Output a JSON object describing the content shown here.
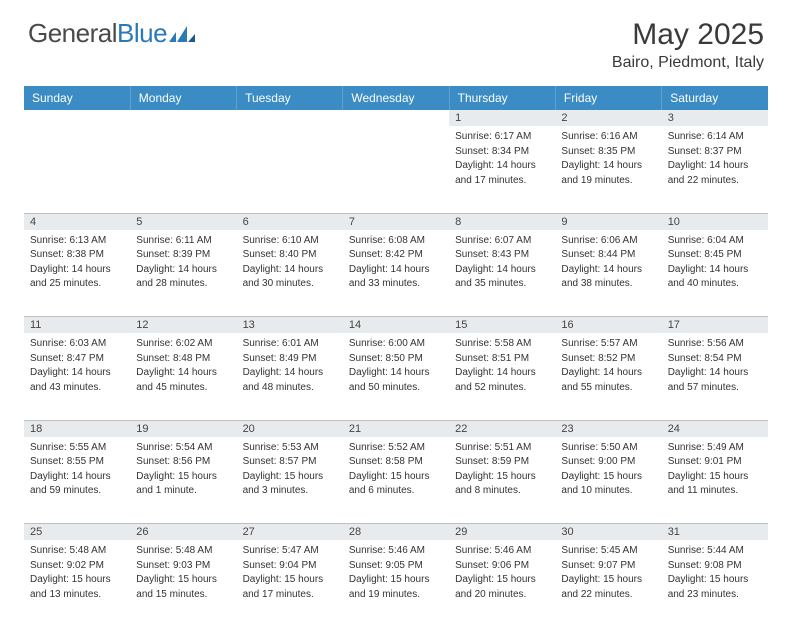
{
  "brand": {
    "name_part1": "General",
    "name_part2": "Blue"
  },
  "title": "May 2025",
  "location": "Bairo, Piedmont, Italy",
  "colors": {
    "header_bg": "#3b8bc4",
    "header_text": "#ffffff",
    "daynum_bg": "#e8ebee",
    "border": "#bfbfbf",
    "brand_blue": "#2a7ab8",
    "text": "#333333"
  },
  "weekdays": [
    "Sunday",
    "Monday",
    "Tuesday",
    "Wednesday",
    "Thursday",
    "Friday",
    "Saturday"
  ],
  "weeks": [
    [
      null,
      null,
      null,
      null,
      {
        "d": "1",
        "sr": "Sunrise: 6:17 AM",
        "ss": "Sunset: 8:34 PM",
        "dl1": "Daylight: 14 hours",
        "dl2": "and 17 minutes."
      },
      {
        "d": "2",
        "sr": "Sunrise: 6:16 AM",
        "ss": "Sunset: 8:35 PM",
        "dl1": "Daylight: 14 hours",
        "dl2": "and 19 minutes."
      },
      {
        "d": "3",
        "sr": "Sunrise: 6:14 AM",
        "ss": "Sunset: 8:37 PM",
        "dl1": "Daylight: 14 hours",
        "dl2": "and 22 minutes."
      }
    ],
    [
      {
        "d": "4",
        "sr": "Sunrise: 6:13 AM",
        "ss": "Sunset: 8:38 PM",
        "dl1": "Daylight: 14 hours",
        "dl2": "and 25 minutes."
      },
      {
        "d": "5",
        "sr": "Sunrise: 6:11 AM",
        "ss": "Sunset: 8:39 PM",
        "dl1": "Daylight: 14 hours",
        "dl2": "and 28 minutes."
      },
      {
        "d": "6",
        "sr": "Sunrise: 6:10 AM",
        "ss": "Sunset: 8:40 PM",
        "dl1": "Daylight: 14 hours",
        "dl2": "and 30 minutes."
      },
      {
        "d": "7",
        "sr": "Sunrise: 6:08 AM",
        "ss": "Sunset: 8:42 PM",
        "dl1": "Daylight: 14 hours",
        "dl2": "and 33 minutes."
      },
      {
        "d": "8",
        "sr": "Sunrise: 6:07 AM",
        "ss": "Sunset: 8:43 PM",
        "dl1": "Daylight: 14 hours",
        "dl2": "and 35 minutes."
      },
      {
        "d": "9",
        "sr": "Sunrise: 6:06 AM",
        "ss": "Sunset: 8:44 PM",
        "dl1": "Daylight: 14 hours",
        "dl2": "and 38 minutes."
      },
      {
        "d": "10",
        "sr": "Sunrise: 6:04 AM",
        "ss": "Sunset: 8:45 PM",
        "dl1": "Daylight: 14 hours",
        "dl2": "and 40 minutes."
      }
    ],
    [
      {
        "d": "11",
        "sr": "Sunrise: 6:03 AM",
        "ss": "Sunset: 8:47 PM",
        "dl1": "Daylight: 14 hours",
        "dl2": "and 43 minutes."
      },
      {
        "d": "12",
        "sr": "Sunrise: 6:02 AM",
        "ss": "Sunset: 8:48 PM",
        "dl1": "Daylight: 14 hours",
        "dl2": "and 45 minutes."
      },
      {
        "d": "13",
        "sr": "Sunrise: 6:01 AM",
        "ss": "Sunset: 8:49 PM",
        "dl1": "Daylight: 14 hours",
        "dl2": "and 48 minutes."
      },
      {
        "d": "14",
        "sr": "Sunrise: 6:00 AM",
        "ss": "Sunset: 8:50 PM",
        "dl1": "Daylight: 14 hours",
        "dl2": "and 50 minutes."
      },
      {
        "d": "15",
        "sr": "Sunrise: 5:58 AM",
        "ss": "Sunset: 8:51 PM",
        "dl1": "Daylight: 14 hours",
        "dl2": "and 52 minutes."
      },
      {
        "d": "16",
        "sr": "Sunrise: 5:57 AM",
        "ss": "Sunset: 8:52 PM",
        "dl1": "Daylight: 14 hours",
        "dl2": "and 55 minutes."
      },
      {
        "d": "17",
        "sr": "Sunrise: 5:56 AM",
        "ss": "Sunset: 8:54 PM",
        "dl1": "Daylight: 14 hours",
        "dl2": "and 57 minutes."
      }
    ],
    [
      {
        "d": "18",
        "sr": "Sunrise: 5:55 AM",
        "ss": "Sunset: 8:55 PM",
        "dl1": "Daylight: 14 hours",
        "dl2": "and 59 minutes."
      },
      {
        "d": "19",
        "sr": "Sunrise: 5:54 AM",
        "ss": "Sunset: 8:56 PM",
        "dl1": "Daylight: 15 hours",
        "dl2": "and 1 minute."
      },
      {
        "d": "20",
        "sr": "Sunrise: 5:53 AM",
        "ss": "Sunset: 8:57 PM",
        "dl1": "Daylight: 15 hours",
        "dl2": "and 3 minutes."
      },
      {
        "d": "21",
        "sr": "Sunrise: 5:52 AM",
        "ss": "Sunset: 8:58 PM",
        "dl1": "Daylight: 15 hours",
        "dl2": "and 6 minutes."
      },
      {
        "d": "22",
        "sr": "Sunrise: 5:51 AM",
        "ss": "Sunset: 8:59 PM",
        "dl1": "Daylight: 15 hours",
        "dl2": "and 8 minutes."
      },
      {
        "d": "23",
        "sr": "Sunrise: 5:50 AM",
        "ss": "Sunset: 9:00 PM",
        "dl1": "Daylight: 15 hours",
        "dl2": "and 10 minutes."
      },
      {
        "d": "24",
        "sr": "Sunrise: 5:49 AM",
        "ss": "Sunset: 9:01 PM",
        "dl1": "Daylight: 15 hours",
        "dl2": "and 11 minutes."
      }
    ],
    [
      {
        "d": "25",
        "sr": "Sunrise: 5:48 AM",
        "ss": "Sunset: 9:02 PM",
        "dl1": "Daylight: 15 hours",
        "dl2": "and 13 minutes."
      },
      {
        "d": "26",
        "sr": "Sunrise: 5:48 AM",
        "ss": "Sunset: 9:03 PM",
        "dl1": "Daylight: 15 hours",
        "dl2": "and 15 minutes."
      },
      {
        "d": "27",
        "sr": "Sunrise: 5:47 AM",
        "ss": "Sunset: 9:04 PM",
        "dl1": "Daylight: 15 hours",
        "dl2": "and 17 minutes."
      },
      {
        "d": "28",
        "sr": "Sunrise: 5:46 AM",
        "ss": "Sunset: 9:05 PM",
        "dl1": "Daylight: 15 hours",
        "dl2": "and 19 minutes."
      },
      {
        "d": "29",
        "sr": "Sunrise: 5:46 AM",
        "ss": "Sunset: 9:06 PM",
        "dl1": "Daylight: 15 hours",
        "dl2": "and 20 minutes."
      },
      {
        "d": "30",
        "sr": "Sunrise: 5:45 AM",
        "ss": "Sunset: 9:07 PM",
        "dl1": "Daylight: 15 hours",
        "dl2": "and 22 minutes."
      },
      {
        "d": "31",
        "sr": "Sunrise: 5:44 AM",
        "ss": "Sunset: 9:08 PM",
        "dl1": "Daylight: 15 hours",
        "dl2": "and 23 minutes."
      }
    ]
  ]
}
